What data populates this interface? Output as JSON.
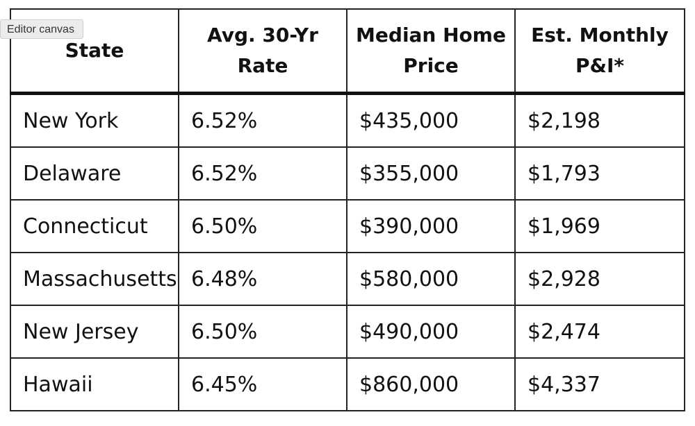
{
  "editor_label": "Editor canvas",
  "table": {
    "headers": [
      {
        "lines": [
          "State"
        ]
      },
      {
        "lines": [
          "Avg. 30-Yr",
          "Rate"
        ]
      },
      {
        "lines": [
          "Median Home",
          "Price"
        ]
      },
      {
        "lines": [
          "Est. Monthly",
          "P&I*"
        ]
      }
    ],
    "rows": [
      [
        "New York",
        "6.52%",
        "$435,000",
        "$2,198"
      ],
      [
        "Delaware",
        "6.52%",
        "$355,000",
        "$1,793"
      ],
      [
        "Connecticut",
        "6.50%",
        "$390,000",
        "$1,969"
      ],
      [
        "Massachusetts",
        "6.48%",
        "$580,000",
        "$2,928"
      ],
      [
        "New Jersey",
        "6.50%",
        "$490,000",
        "$2,474"
      ],
      [
        "Hawaii",
        "6.45%",
        "$860,000",
        "$4,337"
      ]
    ]
  }
}
